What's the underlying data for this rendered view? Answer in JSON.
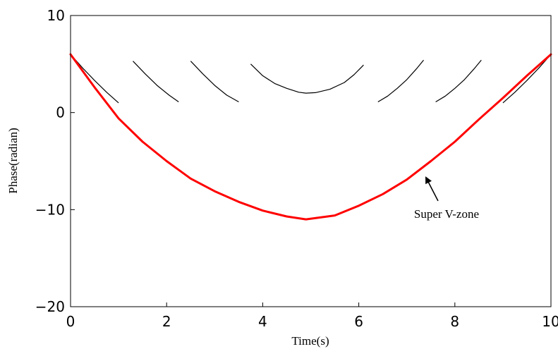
{
  "chart_data": {
    "type": "line",
    "title": "",
    "xlabel": "Time(s)",
    "ylabel": "Phase(radian)",
    "xlim": [
      0,
      10
    ],
    "ylim": [
      -20,
      10
    ],
    "xticks": [
      0,
      2,
      4,
      6,
      8,
      10
    ],
    "yticks": [
      10,
      0,
      -10,
      -20
    ],
    "xtick_labels": [
      "0",
      "2",
      "4",
      "6",
      "8",
      "10"
    ],
    "ytick_labels": [
      "10",
      "0",
      "−10",
      "−20"
    ],
    "grid": false,
    "legend": "none",
    "series": [
      {
        "color": "#000000",
        "style": "wrapped-phase",
        "segments": [
          {
            "x": [
              0.0,
              0.25,
              0.5,
              0.75,
              1.0
            ],
            "y": [
              6.0,
              4.6,
              3.3,
              2.1,
              1.0
            ]
          },
          {
            "x": [
              1.3,
              1.55,
              1.8,
              2.05,
              2.25
            ],
            "y": [
              5.3,
              4.0,
              2.8,
              1.8,
              1.1
            ]
          },
          {
            "x": [
              2.5,
              2.75,
              3.0,
              3.25,
              3.5
            ],
            "y": [
              5.3,
              4.0,
              2.8,
              1.8,
              1.1
            ]
          },
          {
            "x": [
              3.75,
              4.0,
              4.25,
              4.5,
              4.75,
              4.9,
              5.1,
              5.4,
              5.7,
              5.9,
              6.1
            ],
            "y": [
              5.0,
              3.8,
              3.0,
              2.5,
              2.1,
              2.0,
              2.05,
              2.4,
              3.1,
              3.9,
              4.9
            ]
          },
          {
            "x": [
              6.4,
              6.6,
              6.8,
              7.0,
              7.2,
              7.35
            ],
            "y": [
              1.1,
              1.7,
              2.5,
              3.4,
              4.5,
              5.4
            ]
          },
          {
            "x": [
              7.6,
              7.8,
              8.0,
              8.2,
              8.4,
              8.55
            ],
            "y": [
              1.1,
              1.7,
              2.5,
              3.4,
              4.5,
              5.4
            ]
          },
          {
            "x": [
              9.0,
              9.25,
              9.5,
              9.75,
              10.0
            ],
            "y": [
              1.0,
              2.1,
              3.3,
              4.6,
              6.0
            ]
          }
        ]
      },
      {
        "color": "#ff0000",
        "style": "unwrapped-phase",
        "x": [
          0,
          0.5,
          1,
          1.5,
          2,
          2.5,
          3,
          3.5,
          4,
          4.5,
          4.9,
          5.5,
          6,
          6.5,
          7,
          7.5,
          8,
          8.5,
          9,
          9.5,
          10
        ],
        "y": [
          6,
          2.6,
          -0.6,
          -3.0,
          -5.0,
          -6.8,
          -8.1,
          -9.2,
          -10.1,
          -10.7,
          -11.0,
          -10.6,
          -9.6,
          -8.4,
          -6.9,
          -5.0,
          -3.0,
          -0.7,
          1.5,
          3.8,
          6.0
        ]
      }
    ],
    "annotations": [
      {
        "text": "Super V-zone",
        "arrow_from": [
          7.65,
          -9.1
        ],
        "arrow_to": [
          7.4,
          -6.7
        ]
      }
    ]
  }
}
